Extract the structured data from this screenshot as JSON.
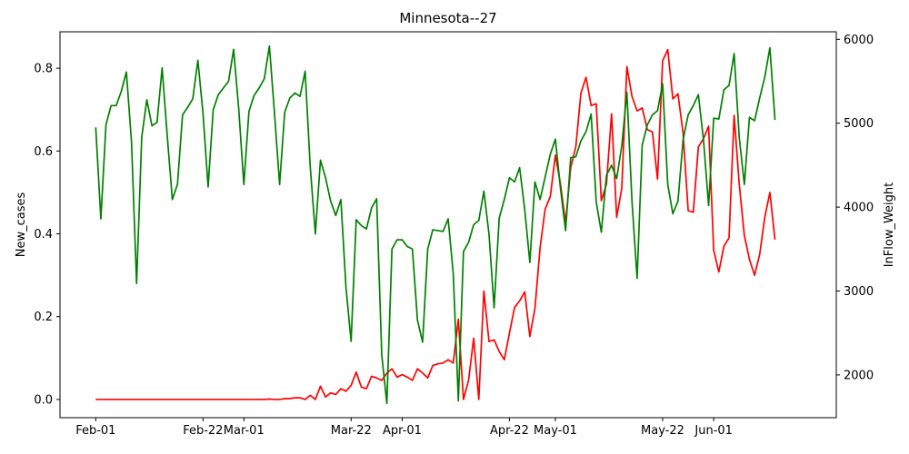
{
  "chart_data": {
    "type": "line",
    "title": "Minnesota--27",
    "xlabel": "",
    "ylabel": "New_cases",
    "y2label": "InFlow_Weight",
    "x_start": "2020-02-01",
    "xlim": [
      "2020-01-25",
      "2020-06-25"
    ],
    "ylim": [
      -0.044,
      0.888
    ],
    "y2lim": [
      1490,
      6090
    ],
    "x_ticks": [
      {
        "date": "2020-02-01",
        "label": "Feb-01"
      },
      {
        "date": "2020-02-22",
        "label": "Feb-22"
      },
      {
        "date": "2020-03-01",
        "label": "Mar-01"
      },
      {
        "date": "2020-03-22",
        "label": "Mar-22"
      },
      {
        "date": "2020-04-01",
        "label": "Apr-01"
      },
      {
        "date": "2020-04-22",
        "label": "Apr-22"
      },
      {
        "date": "2020-05-01",
        "label": "May-01"
      },
      {
        "date": "2020-05-22",
        "label": "May-22"
      },
      {
        "date": "2020-06-01",
        "label": "Jun-01"
      }
    ],
    "y_ticks": [
      {
        "value": 0.0,
        "label": "0.0"
      },
      {
        "value": 0.2,
        "label": "0.2"
      },
      {
        "value": 0.4,
        "label": "0.4"
      },
      {
        "value": 0.6,
        "label": "0.6"
      },
      {
        "value": 0.8,
        "label": "0.8"
      }
    ],
    "y2_ticks": [
      {
        "value": 2000,
        "label": "2000"
      },
      {
        "value": 3000,
        "label": "3000"
      },
      {
        "value": 4000,
        "label": "4000"
      },
      {
        "value": 5000,
        "label": "5000"
      },
      {
        "value": 6000,
        "label": "6000"
      }
    ],
    "grid": false,
    "series": [
      {
        "axis": "left",
        "color": "#ff0000",
        "values": [
          0,
          0,
          0,
          0,
          0,
          0,
          0,
          0,
          0,
          0,
          0,
          0,
          0,
          0,
          0,
          0,
          0,
          0,
          0,
          0,
          0,
          0,
          0,
          0,
          0,
          0,
          0,
          0,
          0,
          0,
          0,
          0,
          0,
          0,
          0.001,
          0,
          0,
          0.002,
          0.002,
          0.004,
          0.004,
          0,
          0.01,
          0,
          0.032,
          0.006,
          0.016,
          0.012,
          0.026,
          0.02,
          0.034,
          0.066,
          0.03,
          0.026,
          0.056,
          0.052,
          0.046,
          0.064,
          0.074,
          0.054,
          0.06,
          0.054,
          0.046,
          0.074,
          0.064,
          0.052,
          0.082,
          0.086,
          0.088,
          0.096,
          0.088,
          0.194,
          0,
          0.046,
          0.148,
          0,
          0.262,
          0.14,
          0.144,
          0.116,
          0.096,
          0.16,
          0.222,
          0.238,
          0.26,
          0.152,
          0.22,
          0.366,
          0.46,
          0.49,
          0.59,
          0.52,
          0.426,
          0.56,
          0.61,
          0.74,
          0.778,
          0.71,
          0.714,
          0.48,
          0.52,
          0.69,
          0.44,
          0.51,
          0.804,
          0.732,
          0.697,
          0.704,
          0.652,
          0.646,
          0.532,
          0.818,
          0.845,
          0.726,
          0.738,
          0.644,
          0.456,
          0.452,
          0.61,
          0.63,
          0.66,
          0.36,
          0.308,
          0.37,
          0.39,
          0.686,
          0.52,
          0.396,
          0.338,
          0.3,
          0.35,
          0.44,
          0.5,
          0.386
        ]
      },
      {
        "axis": "right",
        "color": "#008000",
        "values": [
          4950,
          3860,
          4980,
          5210,
          5210,
          5380,
          5610,
          4780,
          3090,
          4830,
          5280,
          4970,
          5010,
          5660,
          4850,
          4090,
          4270,
          5100,
          5190,
          5290,
          5750,
          5120,
          4240,
          5160,
          5340,
          5420,
          5500,
          5880,
          5170,
          4270,
          5140,
          5330,
          5420,
          5530,
          5920,
          5120,
          4270,
          5130,
          5300,
          5360,
          5320,
          5620,
          4480,
          3680,
          4560,
          4350,
          4070,
          3900,
          4090,
          3040,
          2400,
          3850,
          3780,
          3740,
          3990,
          4100,
          2240,
          1660,
          3500,
          3610,
          3610,
          3530,
          3500,
          2650,
          2390,
          3500,
          3730,
          3720,
          3710,
          3860,
          3210,
          1690,
          3470,
          3580,
          3790,
          3840,
          4190,
          3680,
          2800,
          3870,
          4090,
          4350,
          4300,
          4470,
          3970,
          3340,
          4300,
          4090,
          4360,
          4630,
          4810,
          4220,
          3720,
          4590,
          4600,
          4790,
          4900,
          5110,
          4060,
          3700,
          4380,
          4500,
          4340,
          4730,
          5370,
          4070,
          3150,
          4740,
          4980,
          5100,
          5150,
          5470,
          4270,
          3920,
          4070,
          4800,
          5100,
          5210,
          5340,
          4800,
          4020,
          5060,
          5050,
          5400,
          5450,
          5830,
          4830,
          4270,
          5070,
          5030,
          5300,
          5550,
          5900,
          5040
        ]
      }
    ]
  }
}
